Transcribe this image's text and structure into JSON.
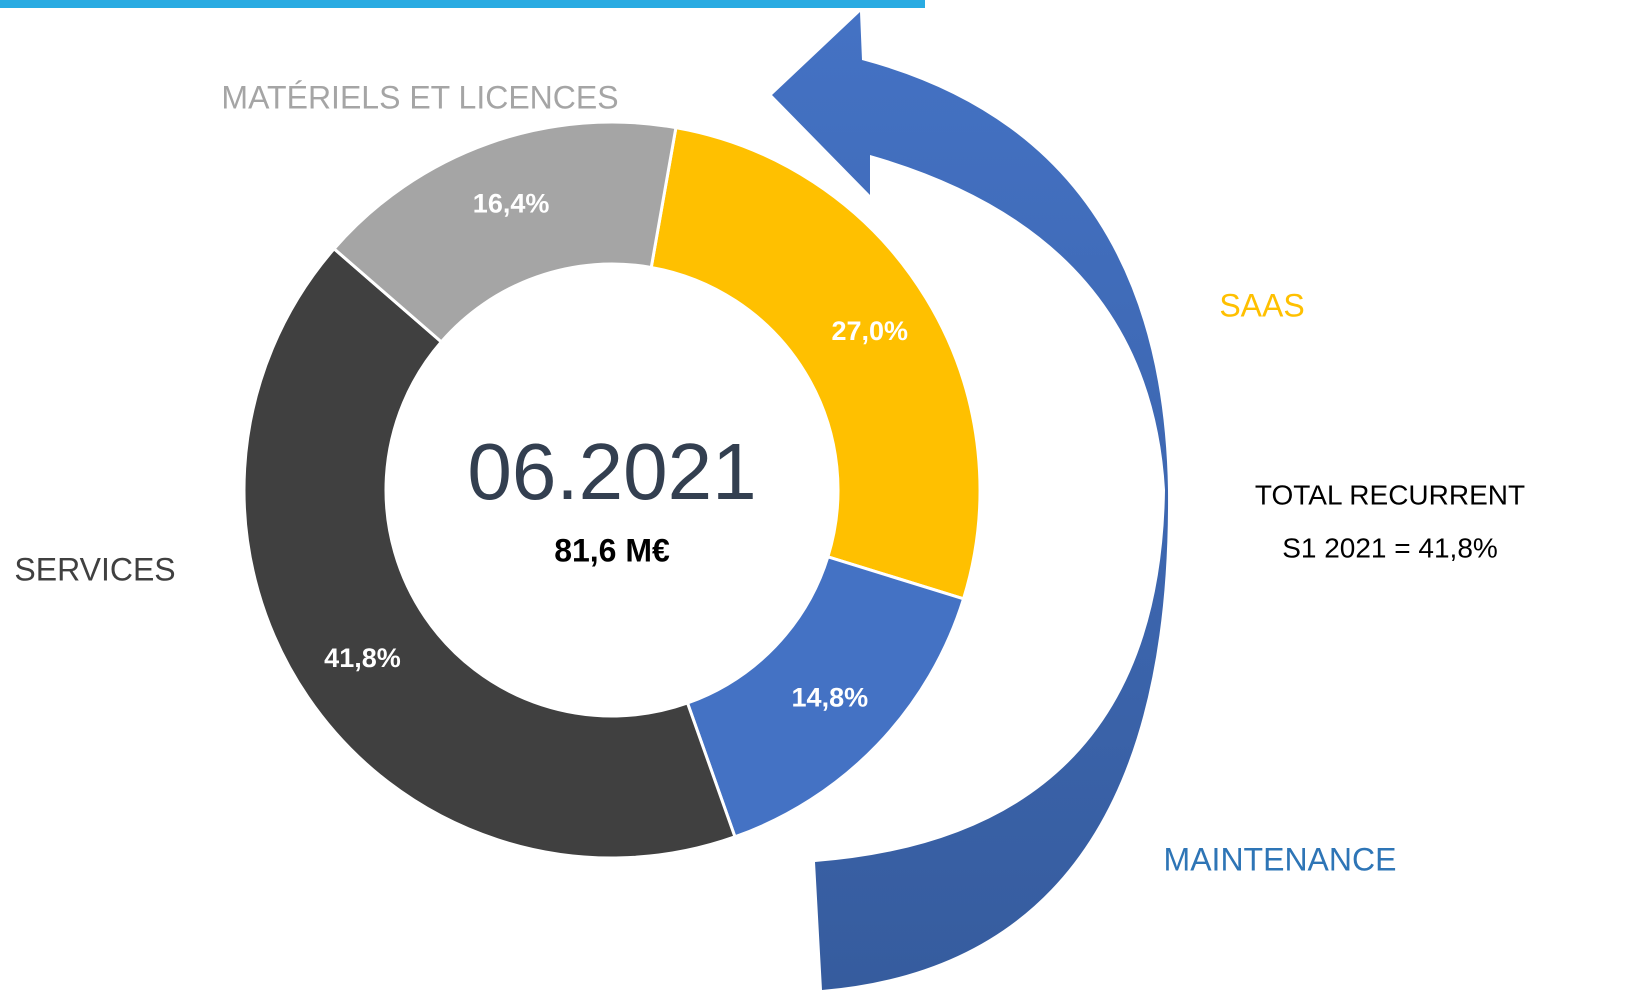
{
  "chart_data": {
    "type": "donut",
    "categories": [
      "SAAS",
      "MAINTENANCE",
      "SERVICES",
      "MATÉRIELS ET LICENCES"
    ],
    "values": [
      27.0,
      14.8,
      41.8,
      16.4
    ],
    "value_labels": [
      "27,0%",
      "14,8%",
      "41,8%",
      "16,4%"
    ],
    "colors": [
      "#ffc000",
      "#4472c4",
      "#404040",
      "#a5a5a5"
    ],
    "center_title": "06.2021",
    "center_subtitle": "81,6 M€",
    "annotation": [
      "TOTAL RECURRENT",
      "S1 2021 = 41,8%"
    ]
  }
}
